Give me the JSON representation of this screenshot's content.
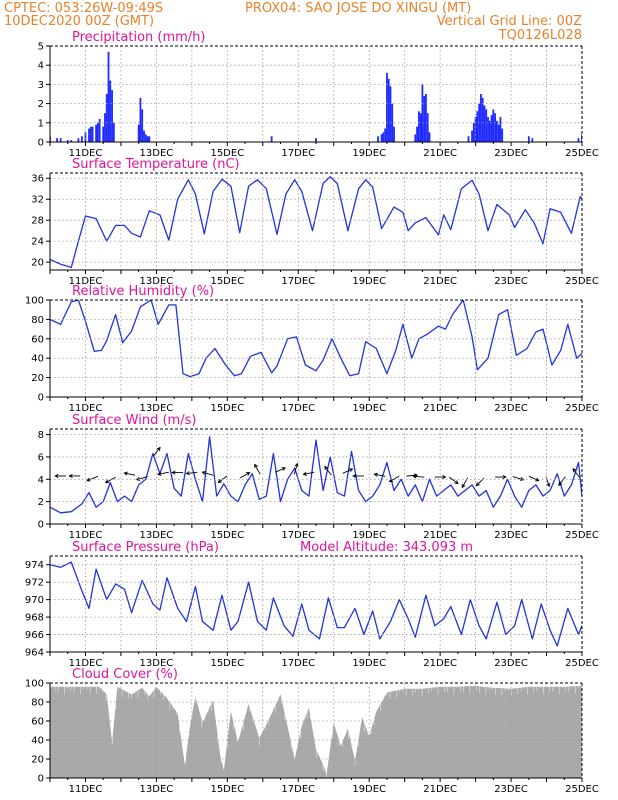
{
  "header": {
    "line1_left": "CPTEC:   053:26W-09:49S",
    "line1_right": "PROX04: SAO JOSE DO XINGU (MT)",
    "line2_left": "10DEC2020 00Z (GMT)",
    "line2_right": "Vertical Grid Line: 00Z",
    "line3_right": "TQ0126L028"
  },
  "colors": {
    "header": "#e8822a",
    "title": "#e0149c",
    "line": "#2233dd",
    "bar": "#1f2bff",
    "cloud": "#a9a9a9",
    "grid": "#9a9a9a"
  },
  "x_axis": {
    "start": "10DEC2020 00Z",
    "end": "25DEC2020 00Z",
    "tick_labels": [
      "11DEC",
      "13DEC",
      "15DEC",
      "17DEC",
      "19DEC",
      "21DEC",
      "23DEC",
      "25DEC"
    ],
    "tick_days": [
      11,
      13,
      15,
      17,
      19,
      21,
      23,
      25
    ]
  },
  "chart_data": [
    {
      "type": "bar",
      "title": "Precipitation  (mm/h)",
      "ylim": [
        0,
        5
      ],
      "yticks": [
        0,
        1,
        2,
        3,
        4,
        5
      ],
      "x_day": [
        10.0,
        10.2,
        10.3,
        10.5,
        10.6,
        10.8,
        10.9,
        11.0,
        11.1,
        11.15,
        11.2,
        11.3,
        11.35,
        11.4,
        11.5,
        11.55,
        11.6,
        11.65,
        11.7,
        11.75,
        11.8,
        12.5,
        12.55,
        12.6,
        12.65,
        12.7,
        12.75,
        12.8,
        16.25,
        17.5,
        19.25,
        19.35,
        19.4,
        19.45,
        19.5,
        19.55,
        19.6,
        19.65,
        19.7,
        20.3,
        20.35,
        20.4,
        20.45,
        20.5,
        20.55,
        20.6,
        20.65,
        20.7,
        21.8,
        21.9,
        21.95,
        22.0,
        22.05,
        22.1,
        22.15,
        22.2,
        22.25,
        22.3,
        22.35,
        22.4,
        22.45,
        22.5,
        22.55,
        22.6,
        22.65,
        22.7,
        22.75,
        23.5,
        23.6,
        24.9,
        25.0
      ],
      "values": [
        0.3,
        0.2,
        0.2,
        0.1,
        0.1,
        0.2,
        0.3,
        0.5,
        0.7,
        0.8,
        0.8,
        0.9,
        1.0,
        1.2,
        0.8,
        1.5,
        2.5,
        4.7,
        3.2,
        2.7,
        1.0,
        0.9,
        2.3,
        1.7,
        0.6,
        0.4,
        0.3,
        0.3,
        0.3,
        0.2,
        0.3,
        0.4,
        0.5,
        0.7,
        3.6,
        3.3,
        2.9,
        2.0,
        0.8,
        0.4,
        0.8,
        1.6,
        1.5,
        3.0,
        2.4,
        2.5,
        1.5,
        0.5,
        0.3,
        0.6,
        1.0,
        1.3,
        1.6,
        2.0,
        2.5,
        2.3,
        1.9,
        1.7,
        1.3,
        1.1,
        1.4,
        1.7,
        1.5,
        1.1,
        0.9,
        1.3,
        0.7,
        0.3,
        0.2,
        0.2,
        0.4
      ]
    },
    {
      "type": "line",
      "title": "Surface Temperature (nC)",
      "ylim": [
        18.5,
        37
      ],
      "yticks": [
        20,
        24,
        28,
        32,
        36
      ],
      "x_day": [
        10.0,
        10.3,
        10.6,
        10.8,
        11.0,
        11.3,
        11.6,
        11.85,
        12.1,
        12.3,
        12.55,
        12.8,
        13.1,
        13.35,
        13.6,
        13.9,
        14.1,
        14.35,
        14.6,
        14.85,
        15.1,
        15.35,
        15.6,
        15.85,
        16.1,
        16.4,
        16.65,
        16.9,
        17.1,
        17.4,
        17.7,
        17.9,
        18.1,
        18.4,
        18.7,
        18.9,
        19.1,
        19.35,
        19.7,
        19.95,
        20.1,
        20.3,
        20.6,
        20.95,
        21.1,
        21.3,
        21.6,
        21.9,
        22.1,
        22.35,
        22.6,
        22.95,
        23.1,
        23.4,
        23.65,
        23.9,
        24.1,
        24.4,
        24.7,
        24.95,
        25.0
      ],
      "values": [
        20.5,
        19.6,
        19.0,
        24.0,
        28.8,
        28.3,
        24.0,
        27.0,
        27.0,
        25.5,
        24.8,
        29.8,
        29.0,
        24.2,
        32.0,
        35.7,
        33.0,
        25.4,
        33.5,
        35.8,
        34.5,
        25.6,
        34.5,
        35.7,
        34.0,
        25.3,
        33.0,
        35.7,
        33.5,
        26.0,
        35.0,
        36.3,
        35.0,
        26.0,
        34.0,
        35.7,
        34.3,
        26.4,
        30.5,
        29.5,
        26.0,
        27.5,
        28.5,
        25.2,
        29.0,
        26.2,
        34.0,
        35.6,
        33.0,
        26.0,
        31.0,
        29.0,
        26.6,
        30.0,
        27.5,
        23.5,
        30.2,
        29.5,
        25.5,
        32.5,
        32.0
      ]
    },
    {
      "type": "line",
      "title": "Relative Humidity (%)",
      "ylim": [
        0,
        100
      ],
      "yticks": [
        0,
        20,
        40,
        60,
        80,
        100
      ],
      "x_day": [
        10.0,
        10.3,
        10.6,
        10.8,
        11.0,
        11.25,
        11.45,
        11.6,
        11.85,
        12.05,
        12.3,
        12.55,
        12.85,
        13.05,
        13.35,
        13.55,
        13.75,
        13.95,
        14.2,
        14.4,
        14.65,
        14.95,
        15.2,
        15.4,
        15.65,
        15.95,
        16.25,
        16.4,
        16.7,
        16.95,
        17.2,
        17.5,
        17.7,
        17.95,
        18.2,
        18.45,
        18.7,
        18.9,
        19.2,
        19.5,
        19.75,
        19.95,
        20.2,
        20.4,
        20.65,
        20.95,
        21.15,
        21.35,
        21.65,
        21.9,
        22.05,
        22.35,
        22.65,
        22.9,
        23.15,
        23.45,
        23.7,
        23.9,
        24.15,
        24.4,
        24.6,
        24.85,
        25.0
      ],
      "values": [
        80,
        75,
        98,
        100,
        78,
        47,
        48,
        58,
        85,
        56,
        68,
        93,
        100,
        75,
        95,
        95,
        24,
        21,
        24,
        40,
        50,
        33,
        22,
        24,
        42,
        46,
        25,
        32,
        60,
        62,
        33,
        27,
        38,
        60,
        40,
        22,
        24,
        57,
        50,
        24,
        48,
        75,
        40,
        60,
        65,
        73,
        70,
        85,
        100,
        62,
        28,
        40,
        85,
        90,
        43,
        50,
        67,
        70,
        33,
        48,
        75,
        40,
        45
      ]
    },
    {
      "type": "line",
      "title": "Surface Wind (m/s)",
      "ylim": [
        0,
        8.5
      ],
      "yticks": [
        0,
        2,
        4,
        6,
        8
      ],
      "x_day": [
        10.0,
        10.3,
        10.6,
        10.9,
        11.1,
        11.3,
        11.5,
        11.7,
        11.9,
        12.1,
        12.3,
        12.5,
        12.7,
        12.9,
        13.1,
        13.3,
        13.5,
        13.7,
        13.9,
        14.1,
        14.3,
        14.5,
        14.7,
        14.9,
        15.1,
        15.3,
        15.5,
        15.7,
        15.9,
        16.1,
        16.3,
        16.5,
        16.7,
        16.9,
        17.1,
        17.3,
        17.5,
        17.7,
        17.9,
        18.1,
        18.3,
        18.5,
        18.7,
        18.9,
        19.1,
        19.3,
        19.5,
        19.7,
        19.9,
        20.1,
        20.3,
        20.5,
        20.7,
        20.9,
        21.1,
        21.3,
        21.5,
        21.7,
        21.9,
        22.1,
        22.3,
        22.5,
        22.7,
        22.9,
        23.1,
        23.3,
        23.5,
        23.7,
        23.9,
        24.1,
        24.3,
        24.5,
        24.7,
        24.9,
        25.0
      ],
      "values": [
        1.5,
        1.0,
        1.1,
        1.8,
        2.8,
        1.5,
        2.0,
        3.7,
        2.0,
        2.5,
        2.0,
        3.5,
        4.0,
        6.3,
        4.5,
        6.3,
        3.2,
        2.5,
        6.3,
        4.0,
        2.0,
        7.8,
        2.5,
        3.6,
        2.5,
        2.0,
        3.5,
        4.5,
        2.2,
        2.5,
        6.3,
        2.0,
        4.0,
        5.0,
        3.0,
        2.5,
        7.5,
        3.0,
        6.0,
        2.8,
        2.5,
        6.5,
        3.0,
        2.0,
        2.5,
        3.5,
        5.5,
        3.0,
        4.0,
        2.5,
        3.5,
        2.0,
        4.0,
        2.5,
        3.0,
        3.5,
        2.5,
        3.0,
        3.5,
        2.5,
        3.0,
        1.5,
        2.5,
        4.0,
        2.5,
        1.5,
        3.0,
        3.5,
        2.5,
        3.0,
        4.5,
        2.5,
        3.5,
        5.5,
        2.5
      ]
    },
    {
      "type": "line",
      "title": "Surface Pressure (hPa)",
      "annotation": "Model Altitude: 343.093 m",
      "ylim": [
        964,
        975
      ],
      "yticks": [
        964,
        966,
        968,
        970,
        972,
        974
      ],
      "x_day": [
        10.0,
        10.3,
        10.6,
        10.9,
        11.1,
        11.3,
        11.6,
        11.85,
        12.1,
        12.3,
        12.6,
        12.9,
        13.1,
        13.3,
        13.6,
        13.85,
        14.1,
        14.3,
        14.6,
        14.85,
        15.1,
        15.3,
        15.6,
        15.85,
        16.1,
        16.3,
        16.6,
        16.85,
        17.1,
        17.3,
        17.6,
        17.85,
        18.1,
        18.3,
        18.6,
        18.85,
        19.1,
        19.3,
        19.6,
        19.85,
        20.1,
        20.3,
        20.6,
        20.85,
        21.1,
        21.3,
        21.6,
        21.85,
        22.1,
        22.3,
        22.6,
        22.85,
        23.1,
        23.3,
        23.6,
        23.85,
        24.1,
        24.3,
        24.6,
        24.9,
        25.0
      ],
      "values": [
        974.0,
        973.7,
        974.3,
        971.0,
        969.0,
        973.5,
        970.0,
        971.8,
        971.2,
        968.5,
        972.2,
        969.5,
        968.8,
        972.5,
        969.0,
        967.5,
        971.5,
        967.5,
        966.5,
        970.5,
        966.5,
        967.5,
        972.0,
        967.5,
        966.5,
        970.2,
        967.0,
        965.8,
        969.5,
        966.5,
        965.5,
        970.2,
        966.8,
        966.8,
        969.0,
        966.0,
        968.7,
        965.5,
        967.5,
        970.0,
        967.8,
        965.7,
        970.5,
        967.0,
        967.8,
        969.2,
        966.0,
        970.0,
        967.0,
        965.5,
        969.7,
        966.0,
        967.0,
        970.0,
        965.5,
        969.5,
        966.5,
        964.7,
        969.0,
        966.0,
        967.0
      ]
    },
    {
      "type": "area",
      "title": "Cloud Cover (%)",
      "ylim": [
        0,
        100
      ],
      "yticks": [
        0,
        20,
        40,
        60,
        80,
        100
      ],
      "x_day": [
        10.0,
        10.3,
        10.6,
        11.0,
        11.4,
        11.6,
        11.75,
        11.9,
        12.3,
        12.6,
        12.8,
        13.0,
        13.3,
        13.6,
        13.8,
        13.95,
        14.1,
        14.3,
        14.6,
        14.8,
        14.9,
        15.1,
        15.3,
        15.6,
        15.9,
        16.2,
        16.5,
        16.9,
        17.1,
        17.3,
        17.5,
        17.7,
        17.8,
        18.0,
        18.2,
        18.4,
        18.6,
        18.8,
        19.0,
        19.2,
        19.5,
        20.0,
        20.5,
        21.0,
        21.5,
        22.0,
        22.5,
        23.0,
        23.5,
        24.0,
        24.5,
        25.0
      ],
      "values": [
        96,
        96,
        96,
        96,
        96,
        88,
        38,
        96,
        88,
        95,
        86,
        96,
        84,
        68,
        14,
        55,
        86,
        58,
        82,
        24,
        8,
        70,
        38,
        78,
        42,
        64,
        88,
        20,
        55,
        74,
        30,
        14,
        4,
        58,
        34,
        52,
        18,
        64,
        44,
        70,
        90,
        94,
        94,
        96,
        96,
        97,
        95,
        94,
        96,
        96,
        96,
        97
      ]
    }
  ]
}
